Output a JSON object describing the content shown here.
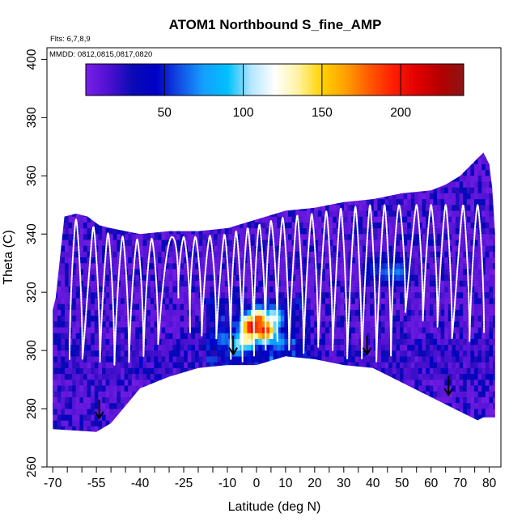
{
  "chart_data": {
    "type": "heatmap",
    "title": "ATOM1 Northbound S_fine_AMP",
    "xlabel": "Latitude (deg N)",
    "ylabel": "Theta (C)",
    "flights_label": "Flts: 6,7,8,9",
    "dates_label": "MMDD: 0812,0815,0817,0820",
    "xlim": [
      -72,
      84
    ],
    "ylim": [
      260,
      404
    ],
    "xticks": [
      -70,
      -55,
      -40,
      -25,
      -10,
      0,
      10,
      20,
      30,
      40,
      50,
      60,
      70,
      80
    ],
    "x_minor_ticks": [
      -65,
      -60,
      -50,
      -45,
      -35,
      -30,
      -20,
      -15,
      -5,
      5,
      15,
      25,
      35,
      45,
      55,
      65,
      75
    ],
    "yticks": [
      260,
      280,
      300,
      320,
      340,
      360,
      380,
      400
    ],
    "colorbar": {
      "range": [
        0,
        240
      ],
      "ticks": [
        50,
        100,
        150,
        200
      ],
      "colors": [
        "#7b1fe8",
        "#4b10d0",
        "#0a0ab4",
        "#0000c8",
        "#1450e6",
        "#14a0ff",
        "#00c0ff",
        "#b4e6ff",
        "#ffffff",
        "#fff3a0",
        "#ffd200",
        "#ffa000",
        "#ff5a00",
        "#ff1e00",
        "#e10000",
        "#b40000",
        "#8c1414"
      ]
    },
    "domain_top": [
      [
        -66,
        346
      ],
      [
        -62,
        347
      ],
      [
        -58,
        346
      ],
      [
        -54,
        343
      ],
      [
        -50,
        342
      ],
      [
        -40,
        340
      ],
      [
        -30,
        341
      ],
      [
        -20,
        341
      ],
      [
        -10,
        342
      ],
      [
        0,
        345
      ],
      [
        10,
        348
      ],
      [
        20,
        349
      ],
      [
        30,
        351
      ],
      [
        40,
        352
      ],
      [
        50,
        354
      ],
      [
        60,
        355
      ],
      [
        65,
        357
      ],
      [
        70,
        360
      ],
      [
        75,
        365
      ],
      [
        78,
        368
      ]
    ],
    "domain_top_right": [
      [
        78,
        368
      ],
      [
        80,
        364
      ],
      [
        81,
        356
      ],
      [
        82,
        340
      ],
      [
        82,
        320
      ],
      [
        82,
        300
      ],
      [
        82,
        277
      ],
      [
        78,
        277
      ]
    ],
    "domain_bottom": [
      [
        -70,
        273
      ],
      [
        -55,
        272
      ],
      [
        -50,
        275
      ],
      [
        -40,
        287
      ],
      [
        -30,
        291
      ],
      [
        -20,
        294
      ],
      [
        -10,
        295
      ],
      [
        0,
        295
      ],
      [
        10,
        298
      ],
      [
        20,
        297
      ],
      [
        30,
        295
      ],
      [
        40,
        294
      ],
      [
        50,
        289
      ],
      [
        60,
        284
      ],
      [
        70,
        279
      ],
      [
        76,
        276
      ]
    ],
    "domain_left": [
      [
        -70,
        273
      ],
      [
        -70,
        314
      ],
      [
        -69,
        318
      ],
      [
        -66,
        346
      ]
    ],
    "hotspots": [
      {
        "lat": 0,
        "theta": 311,
        "value": 190
      },
      {
        "lat": -2,
        "theta": 309,
        "value": 215
      },
      {
        "lat": 2,
        "theta": 308,
        "value": 200
      },
      {
        "lat": -4,
        "theta": 305,
        "value": 140
      },
      {
        "lat": 5,
        "theta": 312,
        "value": 120
      },
      {
        "lat": -7,
        "theta": 303,
        "value": 105
      },
      {
        "lat": 7,
        "theta": 304,
        "value": 80
      },
      {
        "lat": -12,
        "theta": 305,
        "value": 70
      },
      {
        "lat": 44,
        "theta": 328,
        "value": 65
      },
      {
        "lat": 48,
        "theta": 328,
        "value": 70
      },
      {
        "lat": 40,
        "theta": 329,
        "value": 55
      }
    ],
    "profile_peaks": [
      -62,
      -56,
      -51,
      -46,
      -41,
      -36,
      -29,
      -25,
      -21,
      -16,
      -11,
      -7,
      -3,
      1,
      5,
      9,
      14,
      19,
      24,
      29,
      34,
      39,
      44,
      49,
      55,
      60,
      65,
      71,
      76
    ],
    "profile_troughs_theta": [
      297,
      296,
      295,
      296,
      298,
      302,
      318,
      306,
      305,
      304,
      297,
      296,
      298,
      300,
      303,
      300,
      299,
      301,
      300,
      297,
      297,
      296,
      298,
      313,
      310,
      308,
      304,
      303,
      306
    ],
    "arrows": [
      {
        "lat": -54,
        "theta": 277
      },
      {
        "lat": -8,
        "theta": 299
      },
      {
        "lat": 38,
        "theta": 299
      },
      {
        "lat": 66,
        "theta": 285
      }
    ]
  }
}
